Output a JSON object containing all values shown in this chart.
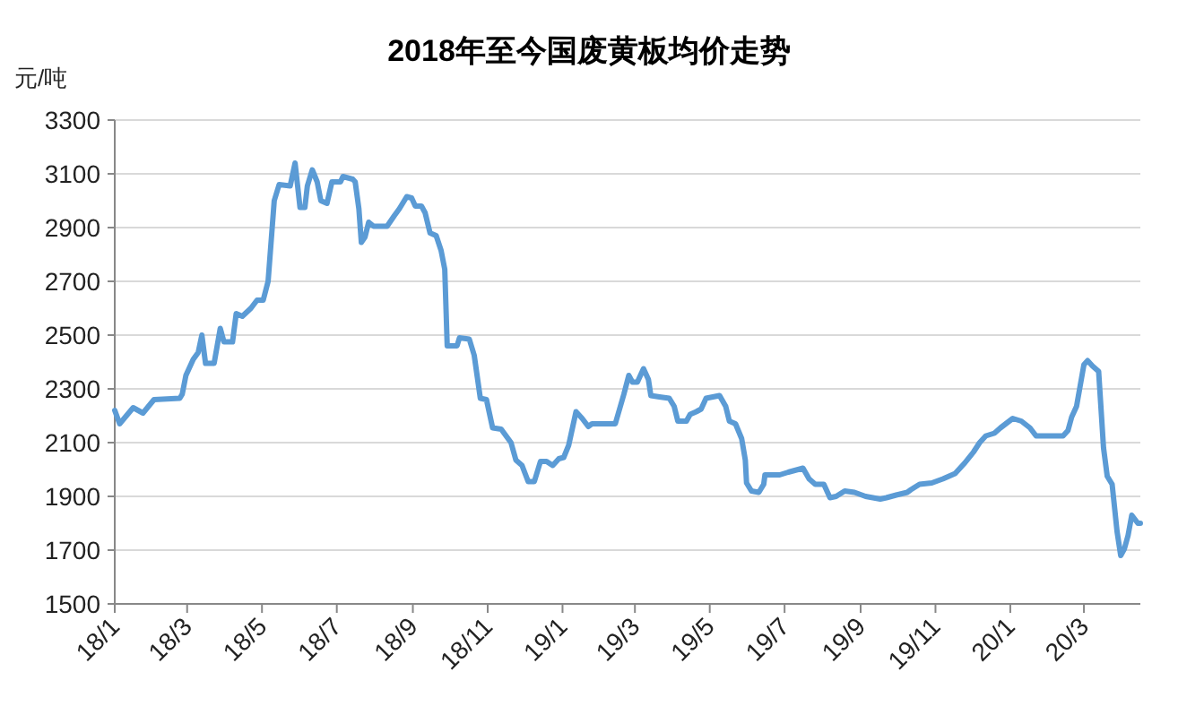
{
  "chart_data": {
    "type": "line",
    "title": "2018年至今国废黄板均价走势",
    "ylabel": "元/吨",
    "x": [
      "2018-01-01",
      "2018-01-05",
      "2018-01-16",
      "2018-01-24",
      "2018-02-02",
      "2018-02-23",
      "2018-02-25",
      "2018-02-28",
      "2018-03-06",
      "2018-03-10",
      "2018-03-13",
      "2018-03-16",
      "2018-03-23",
      "2018-03-28",
      "2018-03-31",
      "2018-04-07",
      "2018-04-10",
      "2018-04-15",
      "2018-04-22",
      "2018-04-27",
      "2018-05-02",
      "2018-05-06",
      "2018-05-09",
      "2018-05-11",
      "2018-05-15",
      "2018-05-24",
      "2018-05-28",
      "2018-06-01",
      "2018-06-05",
      "2018-06-07",
      "2018-06-11",
      "2018-06-15",
      "2018-06-18",
      "2018-06-23",
      "2018-06-27",
      "2018-07-04",
      "2018-07-06",
      "2018-07-14",
      "2018-07-16",
      "2018-07-19",
      "2018-07-21",
      "2018-07-24",
      "2018-07-27",
      "2018-07-31",
      "2018-08-11",
      "2018-08-17",
      "2018-08-21",
      "2018-08-27",
      "2018-08-31",
      "2018-09-03",
      "2018-09-08",
      "2018-09-11",
      "2018-09-15",
      "2018-09-20",
      "2018-09-24",
      "2018-09-27",
      "2018-09-29",
      "2018-10-07",
      "2018-10-09",
      "2018-10-17",
      "2018-10-21",
      "2018-10-26",
      "2018-10-31",
      "2018-11-05",
      "2018-11-12",
      "2018-11-20",
      "2018-11-24",
      "2018-11-29",
      "2018-12-04",
      "2018-12-09",
      "2018-12-14",
      "2018-12-19",
      "2018-12-24",
      "2018-12-29",
      "2019-01-02",
      "2019-01-06",
      "2019-01-12",
      "2019-01-17",
      "2019-01-22",
      "2019-01-25",
      "2019-02-13",
      "2019-02-20",
      "2019-02-24",
      "2019-02-27",
      "2019-03-03",
      "2019-03-08",
      "2019-03-12",
      "2019-03-14",
      "2019-03-21",
      "2019-03-29",
      "2019-04-02",
      "2019-04-05",
      "2019-04-12",
      "2019-04-15",
      "2019-04-20",
      "2019-04-24",
      "2019-04-28",
      "2019-05-09",
      "2019-05-14",
      "2019-05-17",
      "2019-05-22",
      "2019-05-27",
      "2019-05-30",
      "2019-05-31",
      "2019-06-04",
      "2019-06-10",
      "2019-06-14",
      "2019-06-15",
      "2019-06-27",
      "2019-07-04",
      "2019-07-16",
      "2019-07-21",
      "2019-07-26",
      "2019-08-02",
      "2019-08-07",
      "2019-08-12",
      "2019-08-19",
      "2019-08-27",
      "2019-09-05",
      "2019-09-17",
      "2019-09-22",
      "2019-09-30",
      "2019-10-09",
      "2019-10-12",
      "2019-10-19",
      "2019-10-29",
      "2019-11-07",
      "2019-11-17",
      "2019-11-25",
      "2019-12-02",
      "2019-12-07",
      "2019-12-12",
      "2019-12-19",
      "2019-12-24",
      "2020-01-03",
      "2020-01-10",
      "2020-01-17",
      "2020-01-22",
      "2020-02-13",
      "2020-02-17",
      "2020-02-20",
      "2020-02-24",
      "2020-03-01",
      "2020-03-04",
      "2020-03-08",
      "2020-03-13",
      "2020-03-17",
      "2020-03-20",
      "2020-03-24",
      "2020-03-28",
      "2020-03-31",
      "2020-04-03",
      "2020-04-06",
      "2020-04-09",
      "2020-04-14",
      "2020-04-16"
    ],
    "series": [
      {
        "color": "#5b9bd5",
        "values": [
          2220,
          2170,
          2230,
          2210,
          2260,
          2265,
          2280,
          2350,
          2410,
          2435,
          2500,
          2395,
          2395,
          2525,
          2475,
          2475,
          2580,
          2570,
          2600,
          2630,
          2630,
          2700,
          2880,
          3000,
          3060,
          3055,
          3140,
          2975,
          2975,
          3055,
          3115,
          3070,
          3000,
          2990,
          3070,
          3070,
          3090,
          3080,
          3070,
          2970,
          2845,
          2865,
          2920,
          2905,
          2905,
          2945,
          2970,
          3015,
          3010,
          2980,
          2980,
          2955,
          2880,
          2870,
          2815,
          2745,
          2460,
          2460,
          2490,
          2485,
          2425,
          2265,
          2260,
          2155,
          2150,
          2100,
          2035,
          2015,
          1955,
          1955,
          2030,
          2030,
          2015,
          2040,
          2045,
          2090,
          2215,
          2190,
          2160,
          2170,
          2170,
          2280,
          2350,
          2325,
          2325,
          2375,
          2335,
          2275,
          2270,
          2265,
          2235,
          2180,
          2180,
          2205,
          2215,
          2225,
          2265,
          2275,
          2235,
          2180,
          2170,
          2115,
          2035,
          1950,
          1920,
          1915,
          1945,
          1980,
          1980,
          1990,
          2005,
          1965,
          1945,
          1945,
          1895,
          1900,
          1920,
          1915,
          1900,
          1890,
          1895,
          1905,
          1915,
          1925,
          1945,
          1950,
          1965,
          1985,
          2025,
          2065,
          2100,
          2125,
          2135,
          2155,
          2190,
          2180,
          2155,
          2125,
          2125,
          2145,
          2195,
          2235,
          2390,
          2405,
          2385,
          2365,
          2080,
          1975,
          1945,
          1770,
          1680,
          1705,
          1755,
          1830,
          1800,
          1800
        ]
      }
    ],
    "xlim": [
      "2018-01-01",
      "2020-04-16"
    ],
    "xticks": [
      {
        "value": "2018-01-01",
        "label": "18/1"
      },
      {
        "value": "2018-03-01",
        "label": "18/3"
      },
      {
        "value": "2018-05-01",
        "label": "18/5"
      },
      {
        "value": "2018-07-01",
        "label": "18/7"
      },
      {
        "value": "2018-09-01",
        "label": "18/9"
      },
      {
        "value": "2018-11-01",
        "label": "18/11"
      },
      {
        "value": "2019-01-01",
        "label": "19/1"
      },
      {
        "value": "2019-03-01",
        "label": "19/3"
      },
      {
        "value": "2019-05-01",
        "label": "19/5"
      },
      {
        "value": "2019-07-01",
        "label": "19/7"
      },
      {
        "value": "2019-09-01",
        "label": "19/9"
      },
      {
        "value": "2019-11-01",
        "label": "19/11"
      },
      {
        "value": "2020-01-01",
        "label": "20/1"
      },
      {
        "value": "2020-03-01",
        "label": "20/3"
      }
    ],
    "ylim": [
      1500,
      3300
    ],
    "yticks": [
      1500,
      1700,
      1900,
      2100,
      2300,
      2500,
      2700,
      2900,
      3100,
      3300
    ],
    "grid": "y",
    "marker": "none",
    "line_style": "solid"
  }
}
